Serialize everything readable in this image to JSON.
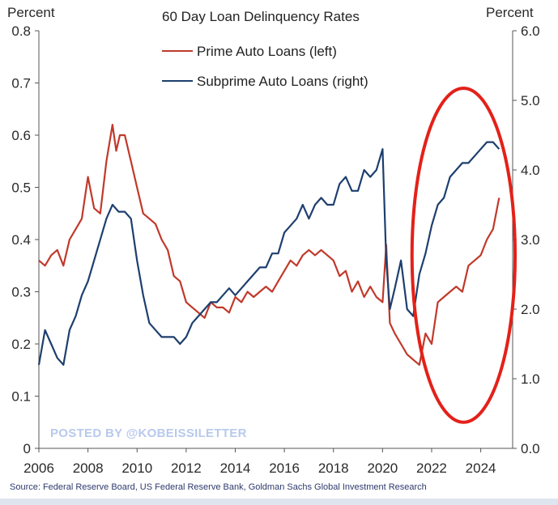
{
  "chart_data": {
    "type": "line",
    "title": "60 Day Loan Delinquency Rates",
    "left_axis_label": "Percent",
    "right_axis_label": "Percent",
    "x_ticks": [
      "2006",
      "2008",
      "2010",
      "2012",
      "2014",
      "2016",
      "2018",
      "2020",
      "2022",
      "2024"
    ],
    "left_ticks": [
      "0",
      "0.1",
      "0.2",
      "0.3",
      "0.4",
      "0.5",
      "0.6",
      "0.7",
      "0.8"
    ],
    "right_ticks": [
      "0.0",
      "1.0",
      "2.0",
      "3.0",
      "4.0",
      "5.0",
      "6.0"
    ],
    "xlim": [
      2006,
      2025.3
    ],
    "ylim_left": [
      0,
      0.8
    ],
    "ylim_right": [
      0,
      6.0
    ],
    "grid": false,
    "legend_position": "top-center",
    "series": [
      {
        "name": "Prime Auto Loans (left)",
        "axis": "left",
        "color": "#c0392b",
        "x": [
          2006.0,
          2006.25,
          2006.5,
          2006.75,
          2007.0,
          2007.25,
          2007.5,
          2007.75,
          2008.0,
          2008.25,
          2008.5,
          2008.75,
          2009.0,
          2009.15,
          2009.3,
          2009.5,
          2009.75,
          2010.0,
          2010.25,
          2010.5,
          2010.75,
          2011.0,
          2011.25,
          2011.5,
          2011.75,
          2012.0,
          2012.25,
          2012.5,
          2012.75,
          2013.0,
          2013.25,
          2013.5,
          2013.75,
          2014.0,
          2014.25,
          2014.5,
          2014.75,
          2015.0,
          2015.25,
          2015.5,
          2015.75,
          2016.0,
          2016.25,
          2016.5,
          2016.75,
          2017.0,
          2017.25,
          2017.5,
          2017.75,
          2018.0,
          2018.25,
          2018.5,
          2018.75,
          2019.0,
          2019.25,
          2019.5,
          2019.75,
          2020.0,
          2020.15,
          2020.3,
          2020.5,
          2020.75,
          2021.0,
          2021.25,
          2021.5,
          2021.75,
          2022.0,
          2022.25,
          2022.5,
          2022.75,
          2023.0,
          2023.25,
          2023.5,
          2023.75,
          2024.0,
          2024.25,
          2024.5,
          2024.75
        ],
        "values": [
          0.36,
          0.35,
          0.37,
          0.38,
          0.35,
          0.4,
          0.42,
          0.44,
          0.52,
          0.46,
          0.45,
          0.55,
          0.62,
          0.57,
          0.6,
          0.6,
          0.55,
          0.5,
          0.45,
          0.44,
          0.43,
          0.4,
          0.38,
          0.33,
          0.32,
          0.28,
          0.27,
          0.26,
          0.25,
          0.28,
          0.27,
          0.27,
          0.26,
          0.29,
          0.28,
          0.3,
          0.29,
          0.3,
          0.31,
          0.3,
          0.32,
          0.34,
          0.36,
          0.35,
          0.37,
          0.38,
          0.37,
          0.38,
          0.37,
          0.36,
          0.33,
          0.34,
          0.3,
          0.32,
          0.29,
          0.31,
          0.29,
          0.28,
          0.39,
          0.24,
          0.22,
          0.2,
          0.18,
          0.17,
          0.16,
          0.22,
          0.2,
          0.28,
          0.29,
          0.3,
          0.31,
          0.3,
          0.35,
          0.36,
          0.37,
          0.4,
          0.42,
          0.48
        ]
      },
      {
        "name": "Subprime Auto Loans (right)",
        "axis": "right",
        "color": "#1d3f6e",
        "x": [
          2006.0,
          2006.25,
          2006.5,
          2006.75,
          2007.0,
          2007.25,
          2007.5,
          2007.75,
          2008.0,
          2008.25,
          2008.5,
          2008.75,
          2009.0,
          2009.25,
          2009.5,
          2009.75,
          2010.0,
          2010.25,
          2010.5,
          2010.75,
          2011.0,
          2011.25,
          2011.5,
          2011.75,
          2012.0,
          2012.25,
          2012.5,
          2012.75,
          2013.0,
          2013.25,
          2013.5,
          2013.75,
          2014.0,
          2014.25,
          2014.5,
          2014.75,
          2015.0,
          2015.25,
          2015.5,
          2015.75,
          2016.0,
          2016.25,
          2016.5,
          2016.75,
          2017.0,
          2017.25,
          2017.5,
          2017.75,
          2018.0,
          2018.25,
          2018.5,
          2018.75,
          2019.0,
          2019.25,
          2019.5,
          2019.75,
          2020.0,
          2020.15,
          2020.3,
          2020.5,
          2020.75,
          2021.0,
          2021.25,
          2021.5,
          2021.75,
          2022.0,
          2022.25,
          2022.5,
          2022.75,
          2023.0,
          2023.25,
          2023.5,
          2023.75,
          2024.0,
          2024.25,
          2024.5,
          2024.75
        ],
        "values": [
          1.2,
          1.7,
          1.5,
          1.3,
          1.2,
          1.7,
          1.9,
          2.2,
          2.4,
          2.7,
          3.0,
          3.3,
          3.5,
          3.4,
          3.4,
          3.3,
          2.7,
          2.2,
          1.8,
          1.7,
          1.6,
          1.6,
          1.6,
          1.5,
          1.6,
          1.8,
          1.9,
          2.0,
          2.1,
          2.1,
          2.2,
          2.3,
          2.2,
          2.3,
          2.4,
          2.5,
          2.6,
          2.6,
          2.8,
          2.8,
          3.1,
          3.2,
          3.3,
          3.5,
          3.3,
          3.5,
          3.6,
          3.5,
          3.5,
          3.8,
          3.9,
          3.7,
          3.7,
          4.0,
          3.9,
          4.0,
          4.3,
          2.7,
          2.0,
          2.3,
          2.7,
          2.0,
          1.9,
          2.5,
          2.8,
          3.2,
          3.5,
          3.6,
          3.9,
          4.0,
          4.1,
          4.1,
          4.2,
          4.3,
          4.4,
          4.4,
          4.3
        ]
      }
    ],
    "annotation": {
      "type": "ellipse",
      "color": "#e32119",
      "x_range": [
        2021.2,
        2025.4
      ],
      "y_left_range": [
        0.05,
        0.69
      ]
    }
  },
  "watermark": "POSTED BY @KOBEISSILETTER",
  "source": "Source: Federal Reserve Board, US Federal Reserve Bank, Goldman Sachs Global Investment Research"
}
